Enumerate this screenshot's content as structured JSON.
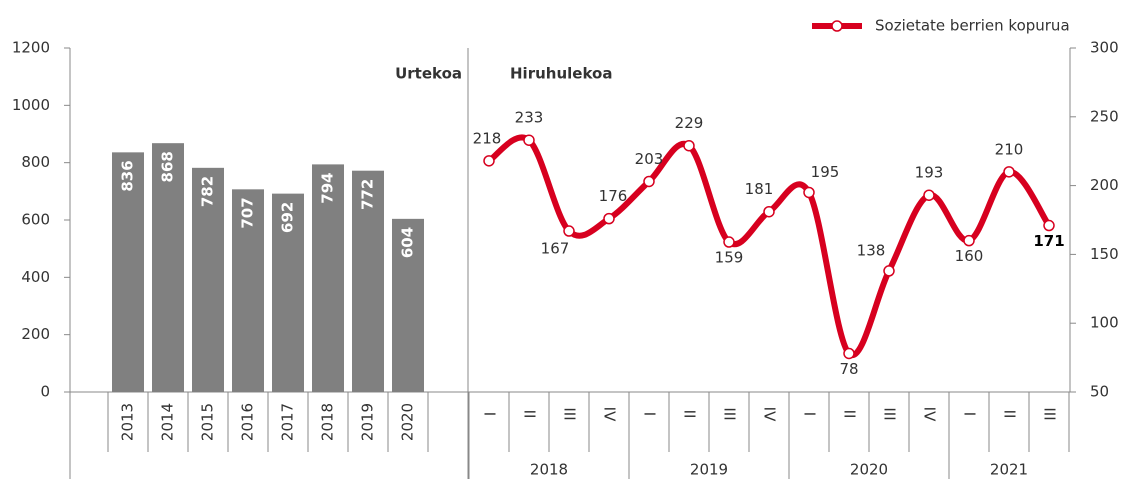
{
  "chart_data": [
    {
      "type": "bar",
      "title": "Urtekoa",
      "categories": [
        "2013",
        "2014",
        "2015",
        "2016",
        "2017",
        "2018",
        "2019",
        "2020"
      ],
      "values": [
        836,
        868,
        782,
        707,
        692,
        794,
        772,
        604
      ],
      "color": "#808080",
      "ylim": [
        0,
        1200
      ],
      "yticks": [
        0,
        200,
        400,
        600,
        800,
        1000,
        1200
      ]
    },
    {
      "type": "line",
      "title": "Hiruhulekoa",
      "categories": [
        "I",
        "II",
        "III",
        "IV",
        "I",
        "II",
        "III",
        "IV",
        "I",
        "II",
        "III",
        "IV",
        "I",
        "II",
        "III"
      ],
      "groups": [
        "2018",
        "2019",
        "2020",
        "2021"
      ],
      "series": [
        {
          "name": "Sozietate berrien kopurua",
          "color": "#d7001f",
          "axis": "y2",
          "values": [
            218,
            233,
            167,
            176,
            203,
            229,
            159,
            181,
            195,
            78,
            138,
            193,
            160,
            210,
            171
          ]
        }
      ],
      "y2lim": [
        50,
        300
      ],
      "y2ticks": [
        50,
        100,
        150,
        200,
        250,
        300
      ]
    }
  ]
}
